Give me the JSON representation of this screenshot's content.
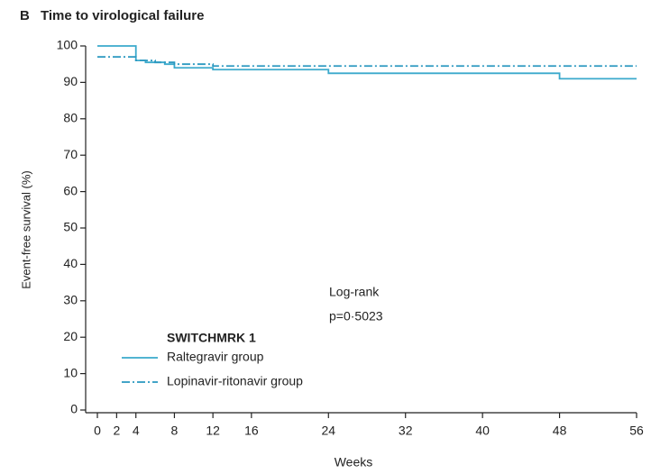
{
  "chart_data": {
    "type": "line",
    "step": true,
    "panel": "B",
    "title": "Time to virological failure",
    "xlabel": "Weeks",
    "ylabel": "Event-free survival (%)",
    "xlim": [
      0,
      56
    ],
    "xticks": [
      0,
      2,
      4,
      8,
      12,
      16,
      24,
      32,
      40,
      48,
      56
    ],
    "ylim": [
      0,
      100
    ],
    "yticks": [
      0,
      10,
      20,
      30,
      40,
      50,
      60,
      70,
      80,
      90,
      100
    ],
    "annotations": [
      "Log-rank",
      "p=0·5023"
    ],
    "legend_title": "SWITCHMRK 1",
    "series": [
      {
        "name": "Raltegravir group",
        "color": "#3aa9cc",
        "dash": "solid",
        "x": [
          0,
          4,
          5,
          7,
          8,
          12,
          24,
          48,
          56
        ],
        "values": [
          100,
          96,
          95.5,
          95,
          94,
          93.5,
          92.5,
          91,
          91
        ]
      },
      {
        "name": "Lopinavir-ritonavir group",
        "color": "#2a98c0",
        "dash": "dashdot",
        "x": [
          0,
          4,
          6,
          8,
          12,
          56
        ],
        "values": [
          97,
          96,
          95.5,
          95,
          94.5,
          94.5
        ]
      }
    ]
  }
}
